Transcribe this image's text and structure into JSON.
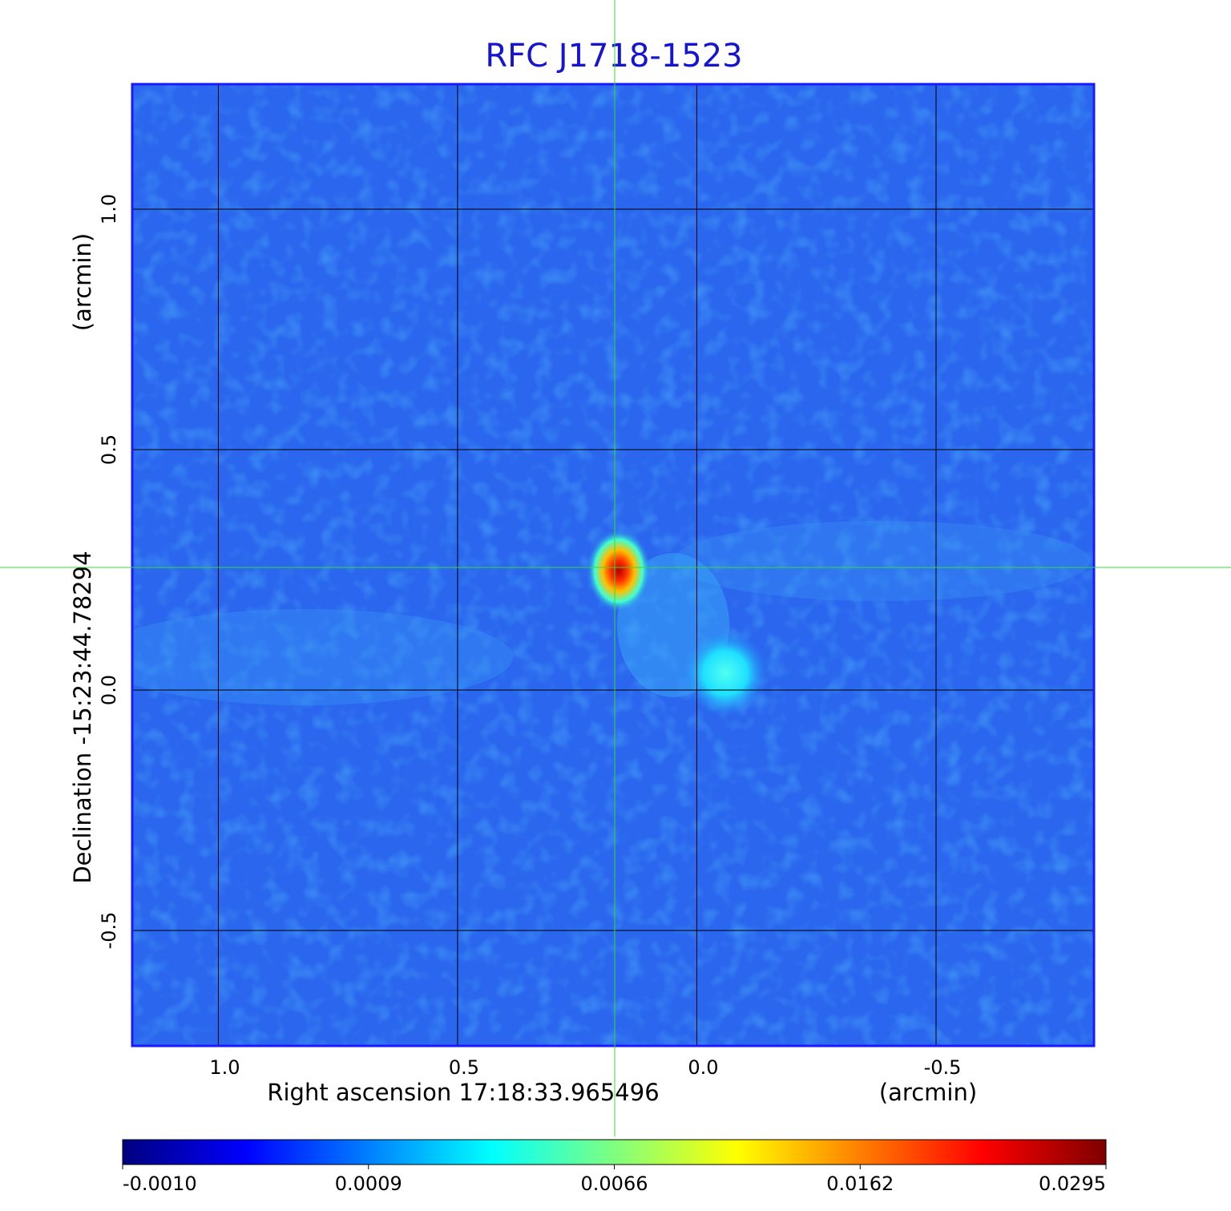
{
  "chart_data": {
    "type": "image",
    "title": "RFC J1718-1523",
    "x_label": "Right ascension  17:18:33.965496",
    "x_unit": "(arcmin)",
    "y_label": "Declination  -15:23:44.78294",
    "y_unit": "(arcmin)",
    "xlim": [
      1.18,
      -0.83
    ],
    "ylim": [
      -0.74,
      1.26
    ],
    "xticks": [
      {
        "value": 1.0,
        "label": "1.0"
      },
      0.5,
      {
        "value": 0.0,
        "label": "0.0"
      },
      -0.5
    ],
    "yticks": [
      {
        "value": 1.0,
        "label": "1.0"
      },
      0.5,
      {
        "value": 0.0,
        "label": "0.0"
      },
      -0.5
    ],
    "grid": true,
    "colorbar": {
      "lim": [
        -0.001,
        0.0295
      ],
      "ticks": [
        {
          "value": -0.001,
          "label": "-0.0010"
        },
        {
          "value": 0.0009,
          "label": "0.0009"
        },
        {
          "value": 0.0066,
          "label": "0.0066"
        },
        {
          "value": 0.0162,
          "label": "0.0162"
        },
        {
          "value": 0.0295,
          "label": "0.0295"
        }
      ],
      "colors": [
        "#00007f",
        "#0000ff",
        "#007fff",
        "#00ffff",
        "#7fff7f",
        "#ffff00",
        "#ff7f00",
        "#ff0000",
        "#7f0000"
      ]
    }
  }
}
